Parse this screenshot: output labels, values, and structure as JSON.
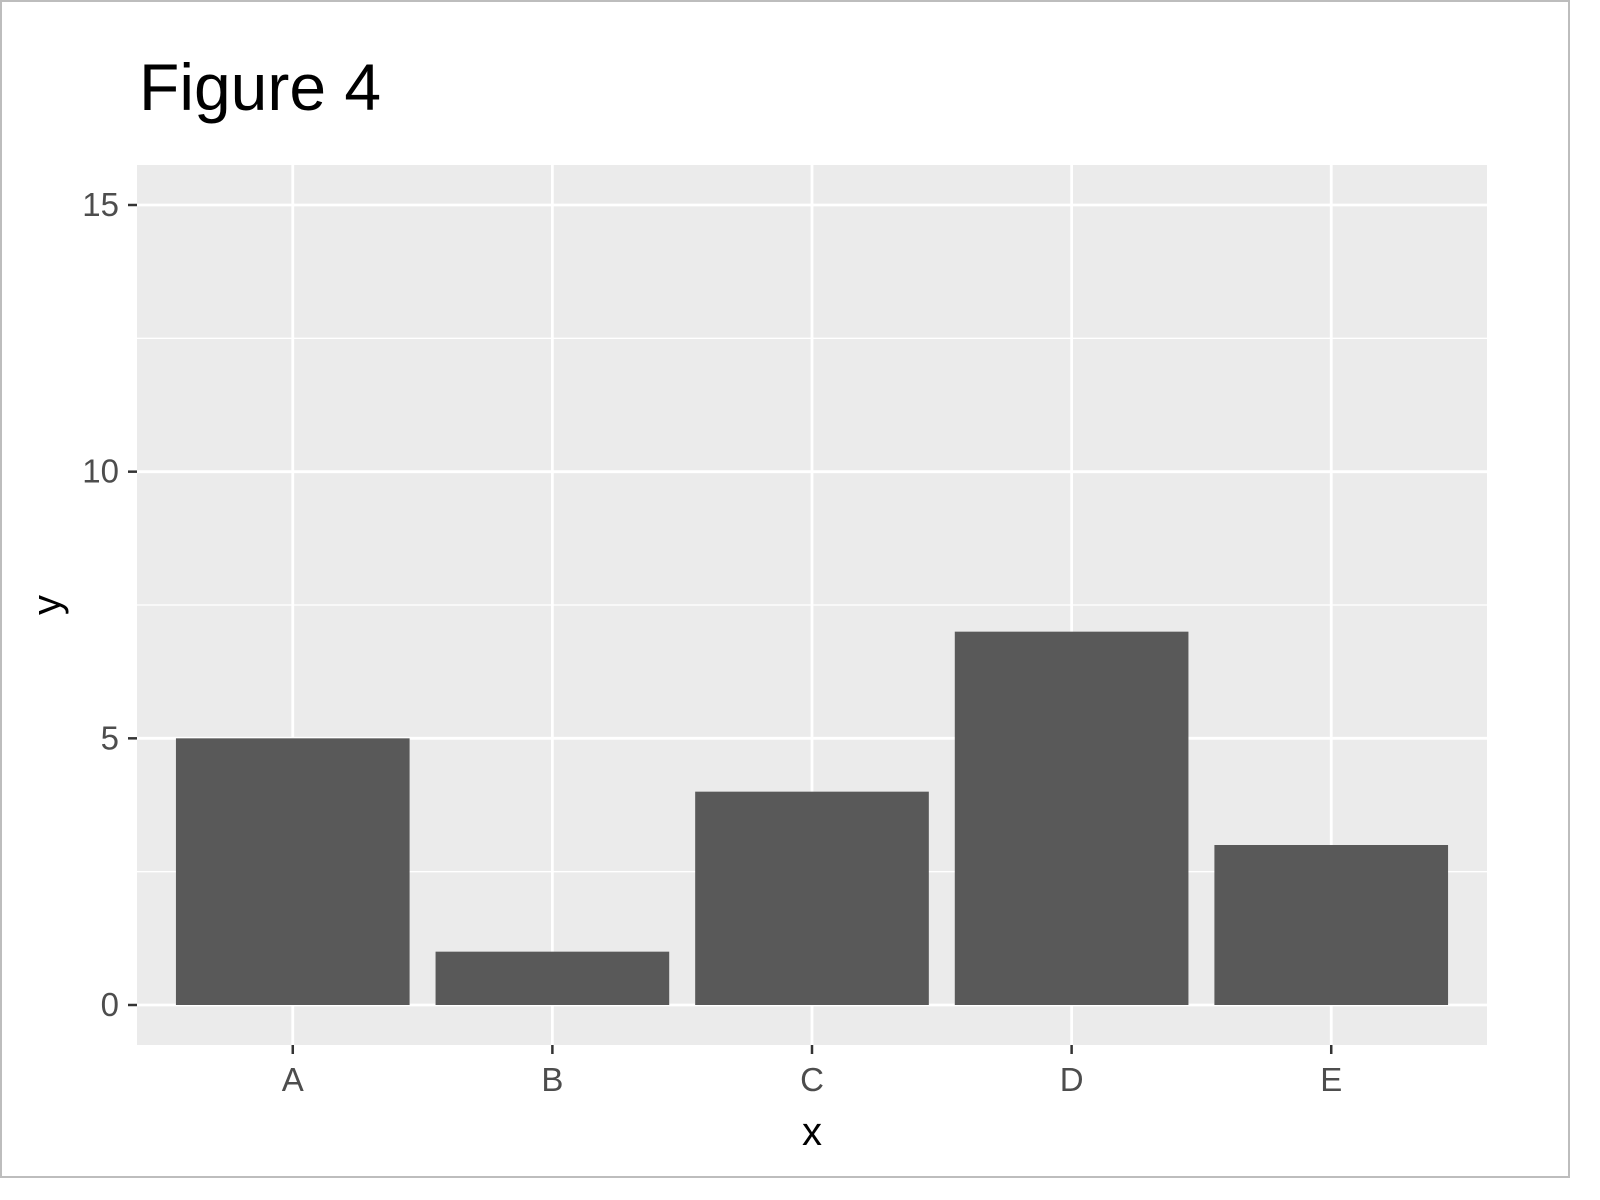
{
  "colors": {
    "panel_background": "#EBEBEB",
    "grid_major": "#FFFFFF",
    "grid_minor": "#FFFFFF",
    "bar_fill": "#595959",
    "tick_color": "#333333",
    "tick_label_color": "#4D4D4D"
  },
  "chart_data": {
    "type": "bar",
    "title": "Figure 4",
    "xlabel": "x",
    "ylabel": "y",
    "categories": [
      "A",
      "B",
      "C",
      "D",
      "E"
    ],
    "values": [
      5,
      1,
      4,
      7,
      3
    ],
    "ylim": [
      -0.75,
      15.75
    ],
    "yticks": [
      0,
      5,
      10,
      15
    ],
    "ytick_labels": [
      "0",
      "5",
      "10",
      "15"
    ],
    "grid": true,
    "legend": "none"
  }
}
